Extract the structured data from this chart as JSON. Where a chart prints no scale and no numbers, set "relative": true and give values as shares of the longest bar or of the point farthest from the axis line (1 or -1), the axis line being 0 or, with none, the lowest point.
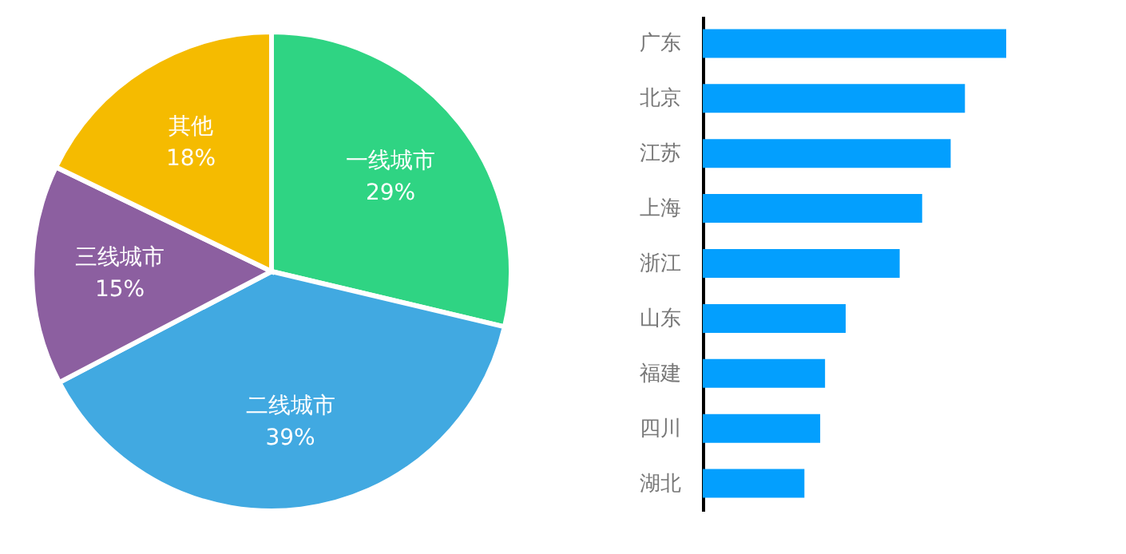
{
  "chart_data": [
    {
      "type": "pie",
      "categories": [
        "一线城市",
        "二线城市",
        "三线城市",
        "其他"
      ],
      "values": [
        29,
        39,
        15,
        18
      ],
      "colors": [
        "#2fd483",
        "#41a9e1",
        "#8c5fa0",
        "#f5bb00"
      ],
      "value_labels": [
        "29%",
        "39%",
        "15%",
        "18%"
      ]
    },
    {
      "type": "bar",
      "orientation": "horizontal",
      "relative": true,
      "categories": [
        "广东",
        "北京",
        "江苏",
        "上海",
        "浙江",
        "山东",
        "福建",
        "四川",
        "湖北"
      ],
      "values": [
        1,
        0.864,
        0.817,
        0.723,
        0.649,
        0.471,
        0.403,
        0.387,
        0.335
      ],
      "color": "#039ffe"
    }
  ]
}
